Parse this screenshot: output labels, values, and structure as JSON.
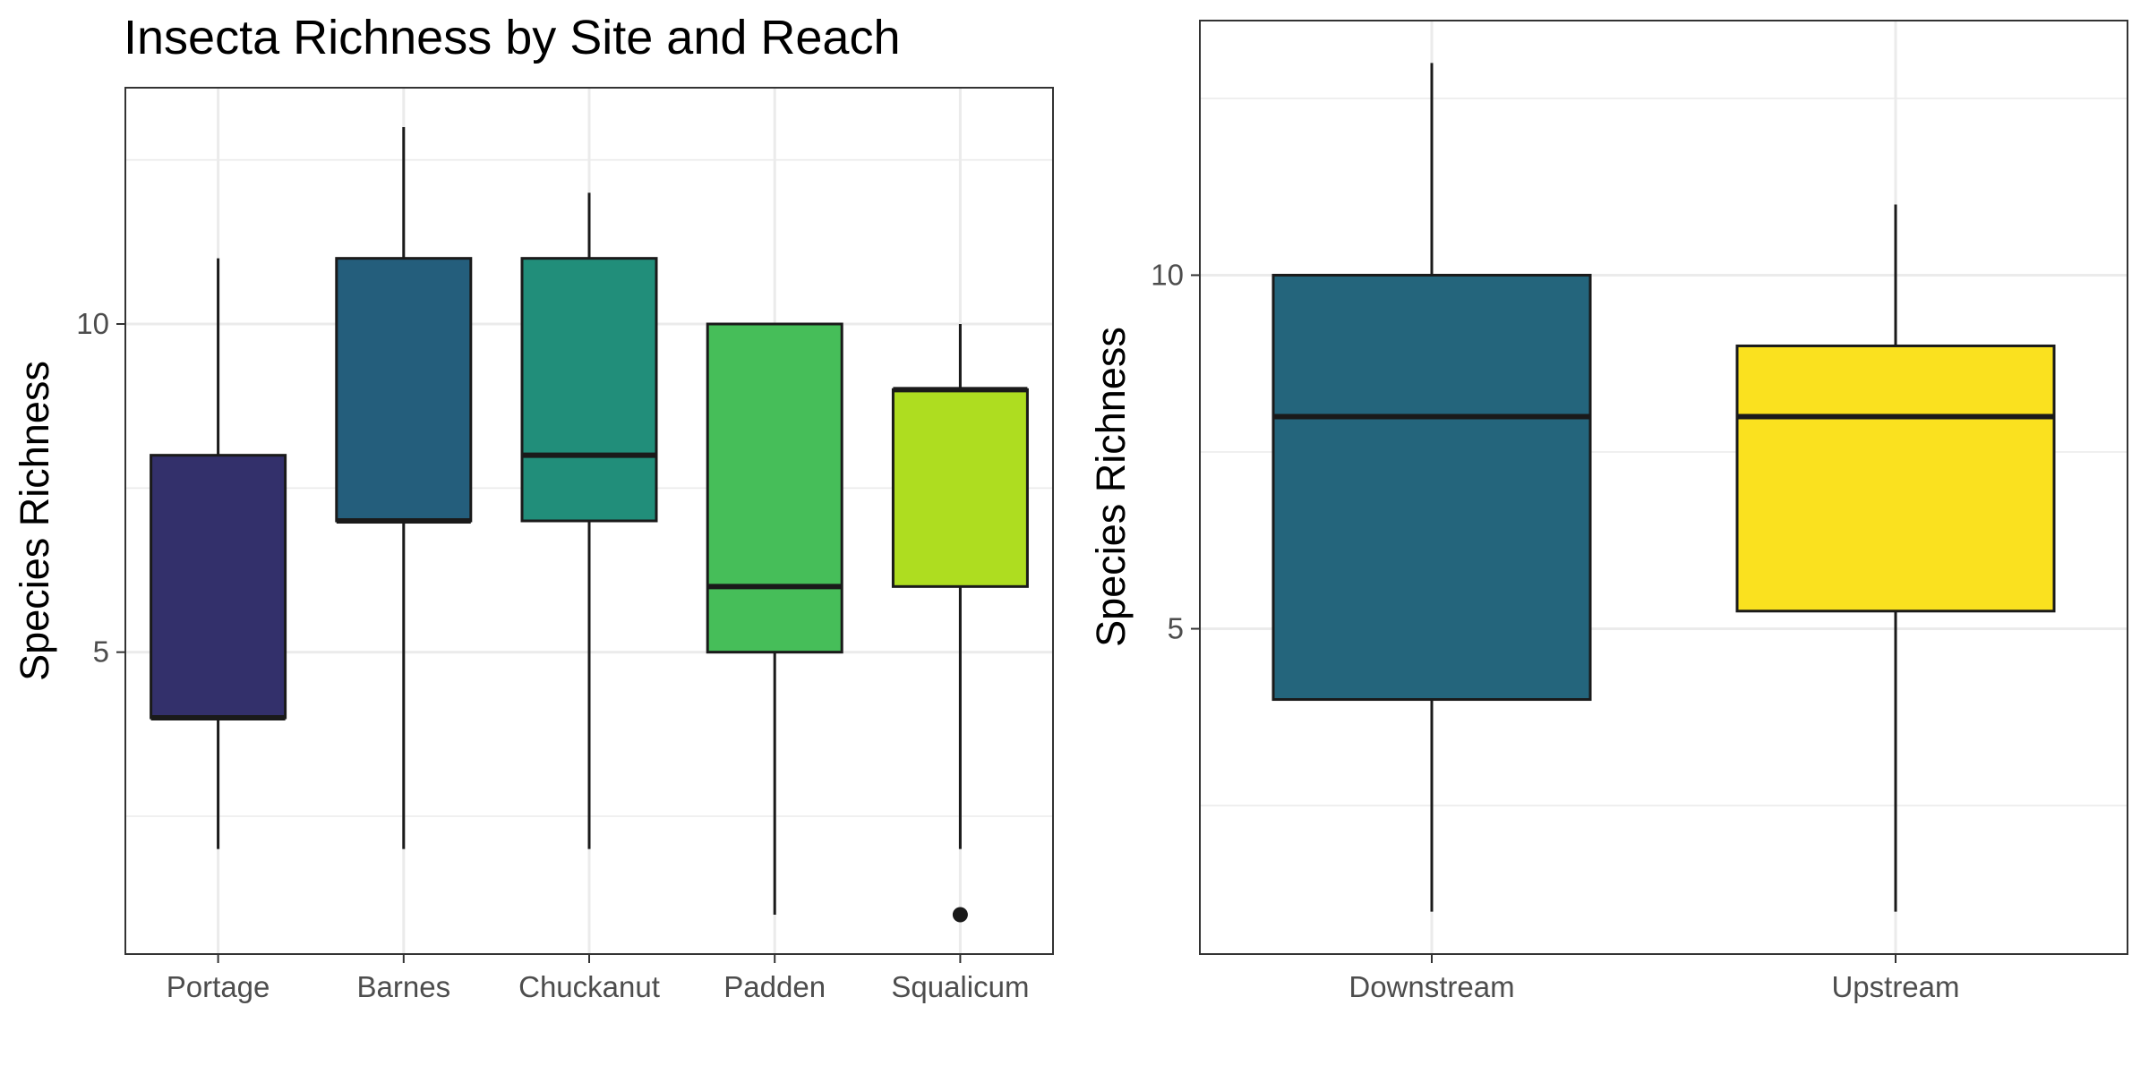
{
  "chart_data": [
    {
      "type": "box",
      "title": "Insecta Richness by Site and Reach",
      "xlabel": "",
      "ylabel": "Species Richness",
      "ylim": [
        0.4,
        13.6
      ],
      "yticks": [
        5,
        10
      ],
      "grid": true,
      "categories": [
        "Portage",
        "Barnes",
        "Chuckanut",
        "Padden",
        "Squalicum"
      ],
      "boxes": [
        {
          "category": "Portage",
          "min": 2,
          "q1": 4,
          "median": 4,
          "q3": 8,
          "max": 11,
          "outliers": [],
          "color": "#33306B"
        },
        {
          "category": "Barnes",
          "min": 2,
          "q1": 7,
          "median": 7,
          "q3": 11,
          "max": 13,
          "outliers": [],
          "color": "#245E7C"
        },
        {
          "category": "Chuckanut",
          "min": 2,
          "q1": 7,
          "median": 8,
          "q3": 11,
          "max": 12,
          "outliers": [],
          "color": "#218E7A"
        },
        {
          "category": "Padden",
          "min": 1,
          "q1": 5,
          "median": 6,
          "q3": 10,
          "max": 10,
          "outliers": [],
          "color": "#46BE59"
        },
        {
          "category": "Squalicum",
          "min": 2,
          "q1": 6,
          "median": 9,
          "q3": 9,
          "max": 10,
          "outliers": [
            1
          ],
          "color": "#AEDD20"
        }
      ]
    },
    {
      "type": "box",
      "title": "",
      "xlabel": "",
      "ylabel": "Species Richness",
      "ylim": [
        0.4,
        13.6
      ],
      "yticks": [
        5,
        10
      ],
      "grid": true,
      "categories": [
        "Downstream",
        "Upstream"
      ],
      "boxes": [
        {
          "category": "Downstream",
          "min": 1,
          "q1": 4,
          "median": 8,
          "q3": 10,
          "max": 13,
          "outliers": [],
          "color": "#24657C"
        },
        {
          "category": "Upstream",
          "min": 1,
          "q1": 5.25,
          "median": 8,
          "q3": 9,
          "max": 11,
          "outliers": [],
          "color": "#FAE11F"
        }
      ]
    }
  ]
}
